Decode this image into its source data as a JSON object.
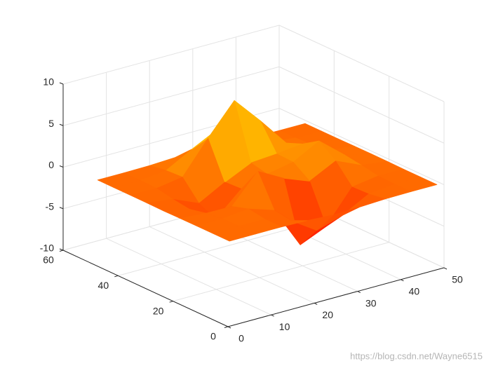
{
  "chart_data": {
    "type": "surface",
    "x": [
      1,
      7,
      13,
      19,
      25,
      31,
      37,
      43,
      49
    ],
    "y": [
      1,
      7,
      13,
      19,
      25,
      31,
      37,
      43,
      49
    ],
    "z": [
      [
        0,
        0,
        0.01,
        -0.07,
        -0.25,
        -0.17,
        -0.03,
        0,
        0
      ],
      [
        0,
        0.01,
        0.01,
        -0.99,
        -3.02,
        -2.05,
        -0.35,
        -0.01,
        0
      ],
      [
        0,
        0.02,
        0.33,
        -0.68,
        -5.68,
        -4.32,
        -0.44,
        0.05,
        0
      ],
      [
        -0.02,
        -0.25,
        -0.28,
        3.09,
        1.4,
        0.2,
        1.78,
        0.41,
        0.02
      ],
      [
        -0.04,
        -0.69,
        -2.77,
        0.06,
        0.98,
        1.57,
        3.27,
        0.7,
        0.03
      ],
      [
        -0.02,
        -0.42,
        -1.76,
        -0.05,
        1.42,
        1.65,
        1.99,
        0.4,
        0.02
      ],
      [
        0,
        -0.03,
        0.48,
        4.38,
        8.0,
        4.73,
        1.19,
        0.12,
        0
      ],
      [
        0,
        0.02,
        0.36,
        2.07,
        3.65,
        2.09,
        0.41,
        0.03,
        0
      ],
      [
        0,
        0,
        0.03,
        0.17,
        0.3,
        0.17,
        0.03,
        0,
        0
      ]
    ],
    "xlim": [
      0,
      50
    ],
    "ylim": [
      0,
      60
    ],
    "zlim": [
      -10,
      10
    ],
    "xticks": [
      0,
      10,
      20,
      30,
      40,
      50
    ],
    "yticks": [
      0,
      20,
      40,
      60
    ],
    "zticks": [
      -10,
      -5,
      0,
      5,
      10
    ],
    "grid": true,
    "colormap": [
      "#ff0000",
      "#ffff00"
    ]
  },
  "watermark": "https://blog.csdn.net/Wayne6515"
}
